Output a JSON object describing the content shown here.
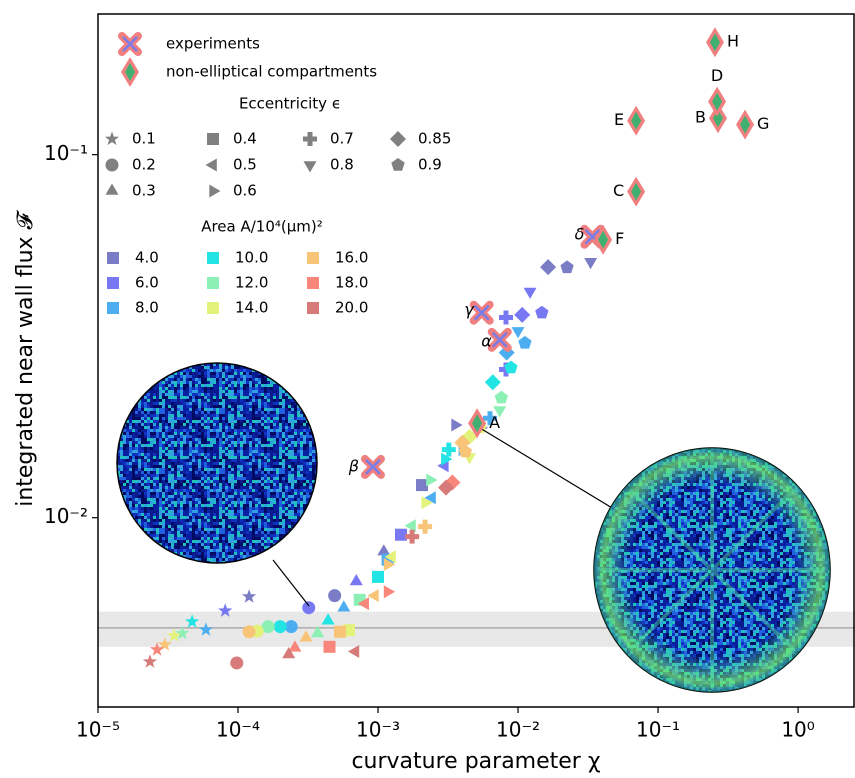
{
  "chart_data": {
    "type": "scatter",
    "xlabel": "curvature parameter χ",
    "ylabel": "integrated near wall flux 𝓕",
    "log_x": true,
    "log_y": true,
    "xlim": [
      1e-05,
      2.55
    ],
    "ylim": [
      0.00301,
      0.244
    ],
    "xticks": [
      {
        "value": 1e-05,
        "label": "10⁻⁵"
      },
      {
        "value": 0.0001,
        "label": "10⁻⁴"
      },
      {
        "value": 0.001,
        "label": "10⁻³"
      },
      {
        "value": 0.01,
        "label": "10⁻²"
      },
      {
        "value": 0.1,
        "label": "10⁻¹"
      },
      {
        "value": 1,
        "label": "10⁰"
      }
    ],
    "yticks": [
      {
        "value": 0.01,
        "label": "10⁻²"
      },
      {
        "value": 0.1,
        "label": "10⁻¹"
      }
    ],
    "reference_line": 0.00497,
    "reference_band": [
      0.00441,
      0.00551
    ],
    "reference_color": "#aaaaaa",
    "eccentricity_legend": {
      "title": "Eccentricity ϵ",
      "values": [
        0.1,
        0.2,
        0.3,
        0.4,
        0.5,
        0.6,
        0.7,
        0.8,
        0.85,
        0.9
      ]
    },
    "area_legend_title": "Area A/10⁴(μm)²",
    "series": [
      {
        "name": "4.0",
        "color": "#7a7cc6",
        "x": [
          0.00012,
          0.00049,
          0.0011,
          0.00206,
          0.00355,
          0.033,
          0.0164,
          0.0224
        ],
        "y": [
          0.00606,
          0.0061,
          0.00806,
          0.0123,
          0.018,
          0.0507,
          0.049,
          0.0489
        ],
        "eccentricity": [
          0.1,
          0.2,
          0.3,
          0.4,
          0.6,
          0.8,
          0.85,
          0.9
        ]
      },
      {
        "name": "6.0",
        "color": "#7878f2",
        "x": [
          8.1e-05,
          0.00032,
          0.0007,
          0.00146,
          0.003,
          0.0054,
          0.0082,
          0.0082,
          0.0122,
          0.0107,
          0.0148
        ],
        "y": [
          0.00554,
          0.00565,
          0.00667,
          0.00898,
          0.0139,
          0.0177,
          0.0356,
          0.0256,
          0.042,
          0.0362,
          0.0367
        ],
        "eccentricity": [
          0.1,
          0.2,
          0.3,
          0.4,
          0.5,
          0.6,
          0.7,
          0.7,
          0.8,
          0.85,
          0.9
        ]
      },
      {
        "name": "8.0",
        "color": "#4caef0",
        "x": [
          5.9e-05,
          0.00024,
          0.00057,
          0.00117,
          0.00243,
          0.004,
          0.0063,
          0.01,
          0.0083,
          0.0112
        ],
        "y": [
          0.00491,
          0.00501,
          0.00565,
          0.00766,
          0.01135,
          0.0154,
          0.0188,
          0.0327,
          0.0285,
          0.0303
        ],
        "eccentricity": [
          0.1,
          0.2,
          0.3,
          0.4,
          0.5,
          0.6,
          0.7,
          0.8,
          0.85,
          0.9
        ]
      },
      {
        "name": "10.0",
        "color": "#22e4e4",
        "x": [
          4.7e-05,
          0.0002,
          0.00044,
          0.001,
          0.003,
          0.0032,
          0.0066,
          0.0089
        ],
        "y": [
          0.00517,
          0.00501,
          0.0052,
          0.00687,
          0.0145,
          0.0154,
          0.0236,
          0.0259
        ],
        "eccentricity": [
          0.1,
          0.2,
          0.3,
          0.4,
          0.6,
          0.7,
          0.85,
          0.9
        ]
      },
      {
        "name": "12.0",
        "color": "#8cf0b4",
        "x": [
          4e-05,
          0.000164,
          0.00037,
          0.00074,
          0.00175,
          0.00235,
          0.0074,
          0.0076
        ],
        "y": [
          0.0048,
          0.00501,
          0.0048,
          0.00594,
          0.0095,
          0.0127,
          0.0198,
          0.0214
        ],
        "eccentricity": [
          0.1,
          0.2,
          0.3,
          0.4,
          0.5,
          0.6,
          0.8,
          0.9
        ]
      },
      {
        "name": "14.0",
        "color": "#e2f27a",
        "x": [
          3.5e-05,
          0.000137,
          0.00062,
          0.00126,
          0.00217,
          0.0045,
          0.0045,
          0.00535
        ],
        "y": [
          0.00473,
          0.00487,
          0.0049,
          0.00781,
          0.011,
          0.0147,
          0.0167,
          0.0177
        ],
        "eccentricity": [
          0.1,
          0.2,
          0.4,
          0.5,
          0.6,
          0.8,
          0.85,
          0.9
        ]
      },
      {
        "name": "16.0",
        "color": "#f8c478",
        "x": [
          3e-05,
          0.00012,
          0.000306,
          0.000535,
          0.00095,
          0.00117,
          0.00217,
          0.004,
          0.0042
        ],
        "y": [
          0.00447,
          0.00485,
          0.00467,
          0.00485,
          0.0061,
          0.00743,
          0.00945,
          0.0161,
          0.0152
        ],
        "eccentricity": [
          0.1,
          0.2,
          0.3,
          0.4,
          0.5,
          0.6,
          0.7,
          0.85,
          0.9
        ]
      },
      {
        "name": "18.0",
        "color": "#f8867a",
        "x": [
          2.64e-05,
          0.000255,
          0.00045,
          0.00081,
          0.00117,
          0.0034
        ],
        "y": [
          0.00433,
          0.00438,
          0.00441,
          0.0058,
          0.00625,
          0.0125
        ],
        "eccentricity": [
          0.1,
          0.3,
          0.4,
          0.5,
          0.6,
          0.85
        ]
      },
      {
        "name": "20.0",
        "color": "#d67a7a",
        "x": [
          2.35e-05,
          9.8e-05,
          0.00023,
          0.00069,
          0.00175,
          0.00306
        ],
        "y": [
          0.00401,
          0.00398,
          0.0042,
          0.00428,
          0.00887,
          0.0121
        ],
        "eccentricity": [
          0.1,
          0.2,
          0.3,
          0.5,
          0.7,
          0.85
        ]
      }
    ],
    "experiments": {
      "name": "experiments",
      "labels": [
        "β",
        "γ",
        "α",
        "δ"
      ],
      "x": [
        0.00092,
        0.0055,
        0.0074,
        0.034
      ],
      "y": [
        0.0138,
        0.0367,
        0.0309,
        0.0594
      ]
    },
    "non_elliptical": {
      "name": "non-elliptical compartments",
      "labels": [
        "A",
        "B",
        "C",
        "D",
        "E",
        "F",
        "G",
        "H"
      ],
      "x": [
        0.0051,
        0.268,
        0.0697,
        0.264,
        0.0697,
        0.0405,
        0.418,
        0.255
      ],
      "y": [
        0.0182,
        0.126,
        0.0791,
        0.14,
        0.124,
        0.0583,
        0.121,
        0.204
      ]
    }
  }
}
